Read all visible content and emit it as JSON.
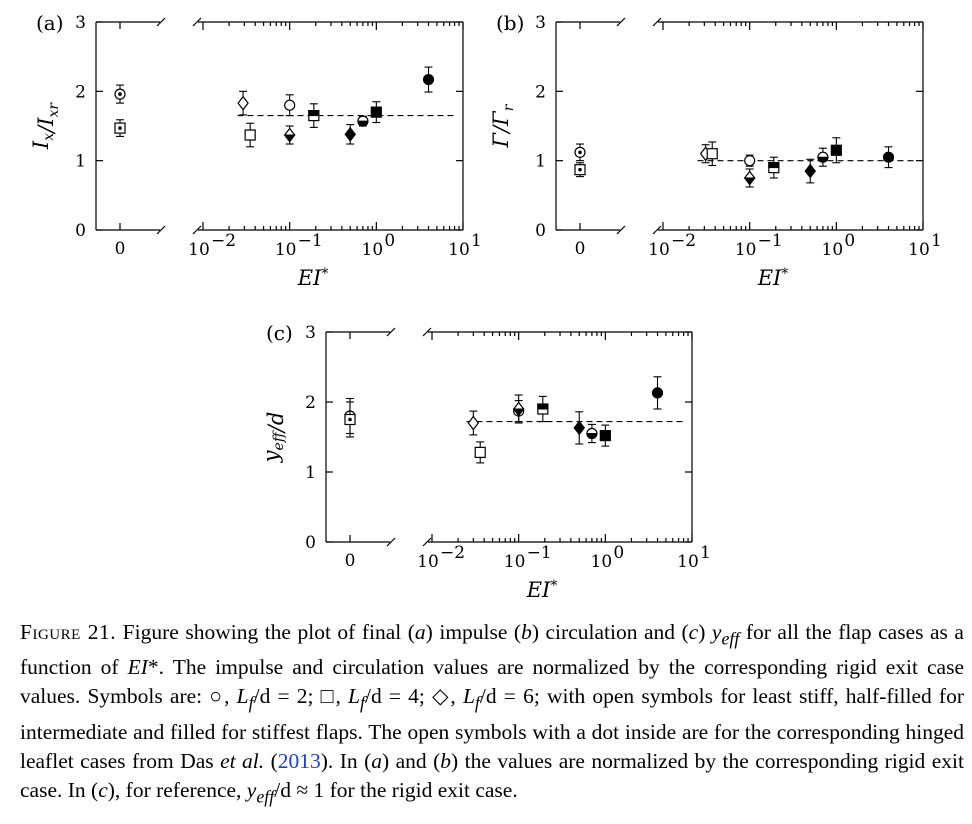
{
  "chart_data": [
    {
      "type": "scatter",
      "panel_label": "(a)",
      "ylabel": "I_x/I_xr",
      "xlabel": "EI*",
      "ylim": [
        0,
        3
      ],
      "yticks": [
        "0",
        "1",
        "2",
        "3"
      ],
      "rigid_tick": "0",
      "xlim_log": [
        -2,
        1
      ],
      "xticks": [
        "10",
        "10",
        "10",
        "10"
      ],
      "xtick_exps": [
        "−2",
        "−1",
        "0",
        "1"
      ],
      "reference_line": {
        "y": 1.65,
        "x_from": 0.025,
        "x_to": 8
      },
      "points": [
        {
          "marker": "circle",
          "fill": "dot",
          "x": "0",
          "y": 1.96,
          "err": 0.13
        },
        {
          "marker": "square",
          "fill": "dot",
          "x": "0",
          "y": 1.47,
          "err": 0.12
        },
        {
          "marker": "diamond",
          "fill": "open",
          "x": 0.029,
          "y": 1.83,
          "err": 0.17
        },
        {
          "marker": "square",
          "fill": "open",
          "x": 0.035,
          "y": 1.37,
          "err": 0.17
        },
        {
          "marker": "circle",
          "fill": "open",
          "x": 0.1,
          "y": 1.8,
          "err": 0.15
        },
        {
          "marker": "diamond",
          "fill": "half",
          "x": 0.1,
          "y": 1.37,
          "err": 0.13
        },
        {
          "marker": "square",
          "fill": "half",
          "x": 0.19,
          "y": 1.65,
          "err": 0.17
        },
        {
          "marker": "diamond",
          "fill": "filled",
          "x": 0.5,
          "y": 1.38,
          "err": 0.14
        },
        {
          "marker": "circle",
          "fill": "half",
          "x": 0.7,
          "y": 1.57,
          "err": 0.07
        },
        {
          "marker": "square",
          "fill": "filled",
          "x": 1.0,
          "y": 1.7,
          "err": 0.15
        },
        {
          "marker": "circle",
          "fill": "filled",
          "x": 4.0,
          "y": 2.17,
          "err": 0.18
        }
      ]
    },
    {
      "type": "scatter",
      "panel_label": "(b)",
      "ylabel": "Γ/Γ_r",
      "xlabel": "EI*",
      "ylim": [
        0,
        3
      ],
      "yticks": [
        "0",
        "1",
        "2",
        "3"
      ],
      "rigid_tick": "0",
      "xlim_log": [
        -2,
        1
      ],
      "xticks": [
        "10",
        "10",
        "10",
        "10"
      ],
      "xtick_exps": [
        "−2",
        "−1",
        "0",
        "1"
      ],
      "reference_line": {
        "y": 1.0,
        "x_from": 0.025,
        "x_to": 8
      },
      "points": [
        {
          "marker": "circle",
          "fill": "dot",
          "x": "0",
          "y": 1.12,
          "err": 0.12
        },
        {
          "marker": "square",
          "fill": "dot",
          "x": "0",
          "y": 0.87,
          "err": 0.1
        },
        {
          "marker": "diamond",
          "fill": "open",
          "x": 0.031,
          "y": 1.1,
          "err": 0.13
        },
        {
          "marker": "square",
          "fill": "open",
          "x": 0.037,
          "y": 1.1,
          "err": 0.17
        },
        {
          "marker": "circle",
          "fill": "open",
          "x": 0.1,
          "y": 1.0,
          "err": 0.08
        },
        {
          "marker": "diamond",
          "fill": "half",
          "x": 0.1,
          "y": 0.75,
          "err": 0.13
        },
        {
          "marker": "square",
          "fill": "half",
          "x": 0.19,
          "y": 0.9,
          "err": 0.15
        },
        {
          "marker": "diamond",
          "fill": "filled",
          "x": 0.5,
          "y": 0.85,
          "err": 0.17
        },
        {
          "marker": "circle",
          "fill": "half",
          "x": 0.7,
          "y": 1.05,
          "err": 0.13
        },
        {
          "marker": "square",
          "fill": "filled",
          "x": 1.0,
          "y": 1.15,
          "err": 0.18
        },
        {
          "marker": "circle",
          "fill": "filled",
          "x": 4.0,
          "y": 1.05,
          "err": 0.15
        }
      ]
    },
    {
      "type": "scatter",
      "panel_label": "(c)",
      "ylabel": "y_eff/d",
      "xlabel": "EI*",
      "ylim": [
        0,
        3
      ],
      "yticks": [
        "0",
        "1",
        "2",
        "3"
      ],
      "rigid_tick": "0",
      "xlim_log": [
        -2,
        1
      ],
      "xticks": [
        "10",
        "10",
        "10",
        "10"
      ],
      "xtick_exps": [
        "−2",
        "−1",
        "0",
        "1"
      ],
      "reference_line": {
        "y": 1.72,
        "x_from": 0.025,
        "x_to": 8
      },
      "points": [
        {
          "marker": "circle",
          "fill": "dot",
          "x": "0",
          "y": 1.8,
          "err": 0.25
        },
        {
          "marker": "square",
          "fill": "dot",
          "x": "0",
          "y": 1.75,
          "err": 0.25
        },
        {
          "marker": "diamond",
          "fill": "open",
          "x": 0.03,
          "y": 1.7,
          "err": 0.17
        },
        {
          "marker": "square",
          "fill": "open",
          "x": 0.036,
          "y": 1.28,
          "err": 0.15
        },
        {
          "marker": "circle",
          "fill": "open",
          "x": 0.1,
          "y": 1.87,
          "err": 0.15
        },
        {
          "marker": "diamond",
          "fill": "half",
          "x": 0.1,
          "y": 1.9,
          "err": 0.2
        },
        {
          "marker": "square",
          "fill": "half",
          "x": 0.19,
          "y": 1.9,
          "err": 0.18
        },
        {
          "marker": "diamond",
          "fill": "filled",
          "x": 0.5,
          "y": 1.63,
          "err": 0.23
        },
        {
          "marker": "circle",
          "fill": "half",
          "x": 0.7,
          "y": 1.55,
          "err": 0.13
        },
        {
          "marker": "square",
          "fill": "filled",
          "x": 1.0,
          "y": 1.52,
          "err": 0.15
        },
        {
          "marker": "circle",
          "fill": "filled",
          "x": 4.0,
          "y": 2.13,
          "err": 0.23
        }
      ]
    }
  ],
  "caption": {
    "label": "Figure 21.",
    "text_1": " Figure showing the plot of final (",
    "a": "a",
    "text_2": ") impulse (",
    "b": "b",
    "text_3": ") circulation and (",
    "c": "c",
    "text_4": ") ",
    "yeff": "y",
    "eff_sub": "eff",
    "text_5": " for all the flap cases as a function of ",
    "ei": "EI",
    "text_6": "*. The impulse and circulation values are normalized by the corresponding rigid exit case values. Symbols are: ○, ",
    "lf1": "L",
    "lf_sub": "f",
    "text_7": "/d = 2; □, ",
    "text_8": "/d = 4; ◇, ",
    "text_9": "/d = 6; with open symbols for least stiff, half-filled for intermediate and filled for stiffest flaps. The open symbols with a dot inside are for the corresponding hinged leaflet cases from Das ",
    "etal": "et al.",
    "text_10": " (",
    "year": "2013",
    "text_11": "). In (",
    "text_12": ") and (",
    "text_13": ") the values are normalized by the corresponding rigid exit case. In (",
    "text_14": "), for reference, ",
    "text_15": "/d ≈ 1 for the rigid exit case."
  }
}
